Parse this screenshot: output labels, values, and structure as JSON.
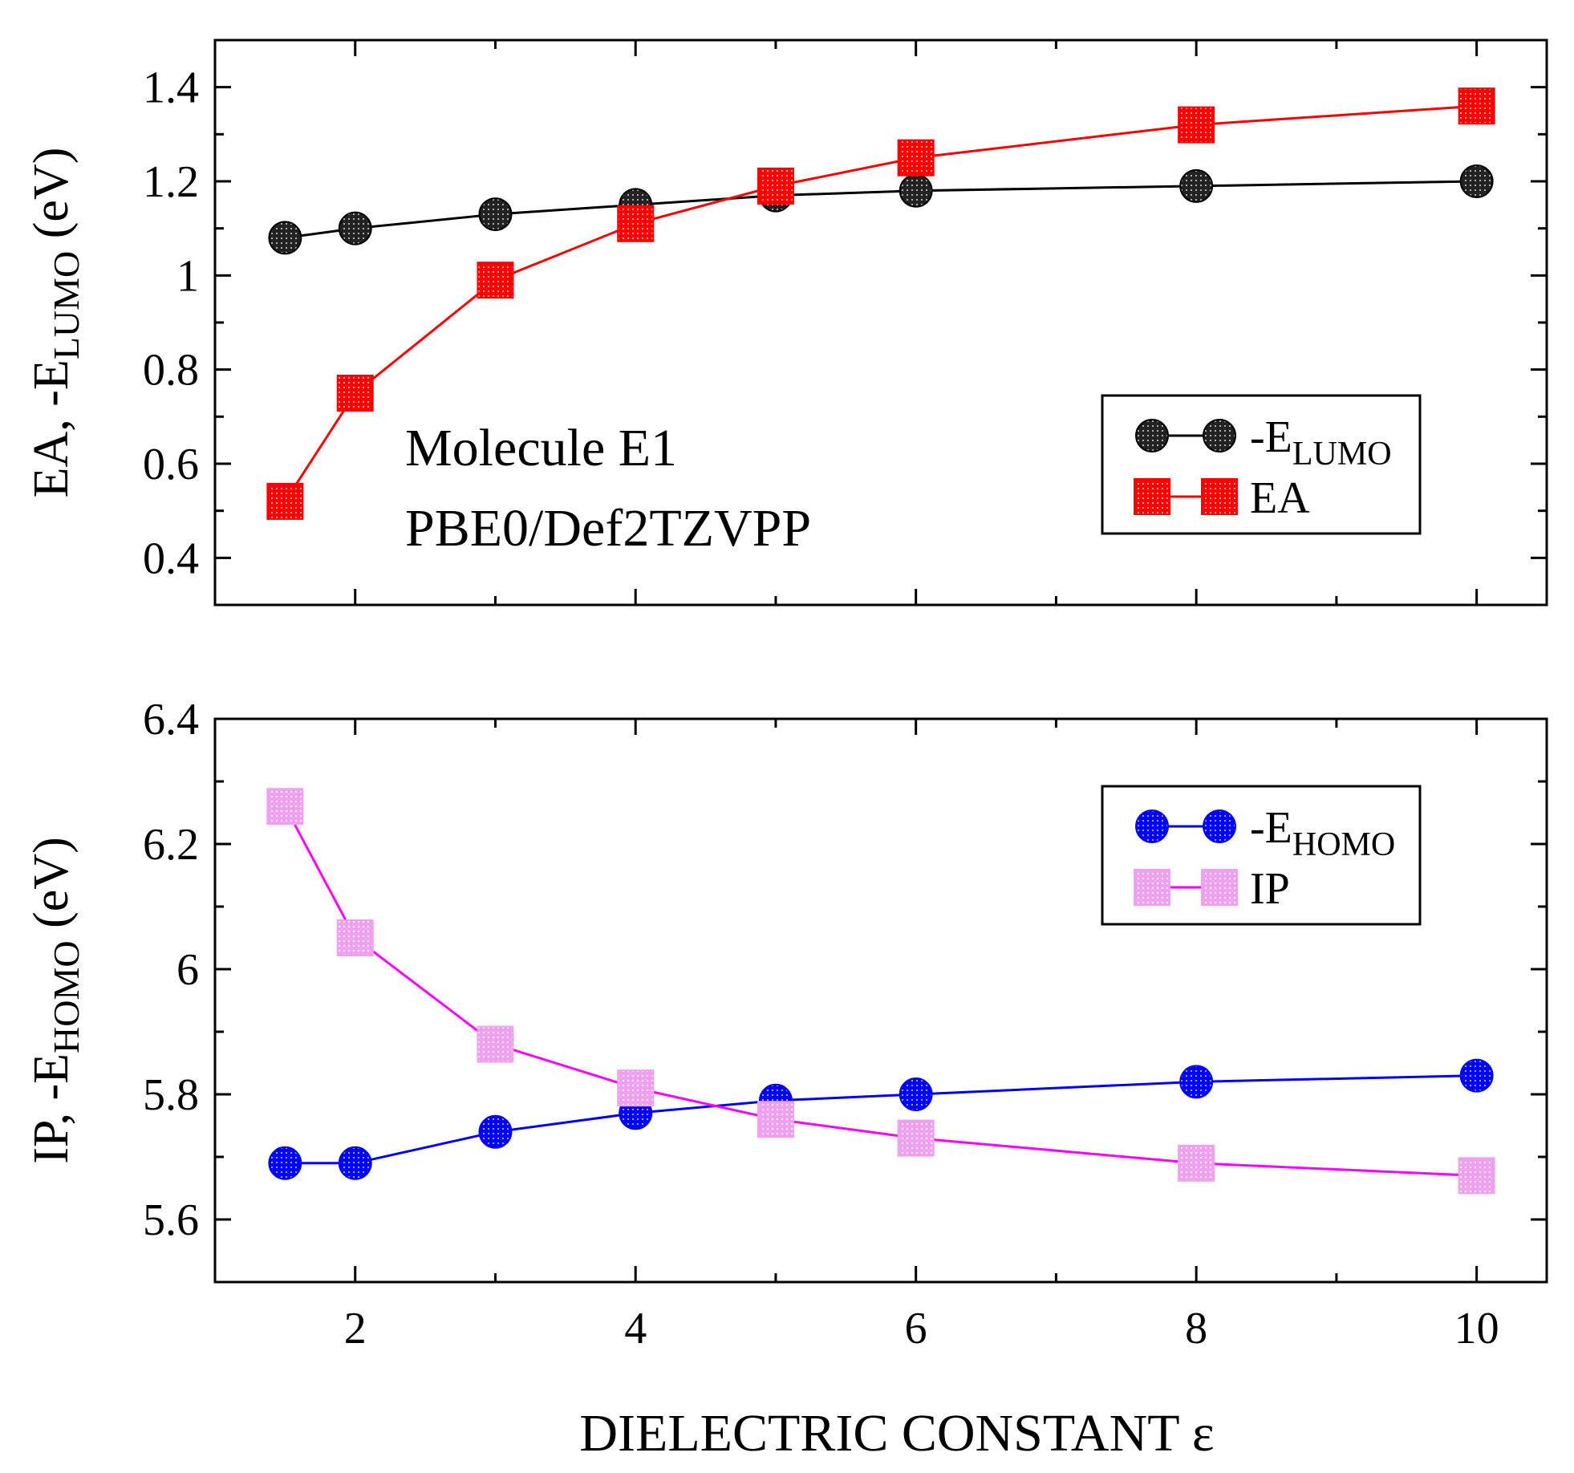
{
  "chart_data": [
    {
      "type": "line",
      "panel": "top",
      "title": "",
      "ylabel_parts": {
        "main": "EA, -E",
        "sub": "LUMO",
        "suffix": "  (eV)"
      },
      "xlabel": "",
      "xlim": [
        1,
        10.5
      ],
      "ylim": [
        0.3,
        1.5
      ],
      "x_ticks": [
        2,
        4,
        6,
        8,
        10
      ],
      "y_ticks": [
        0.4,
        0.6,
        0.8,
        1,
        1.2,
        1.4
      ],
      "y_tick_labels": [
        "0.4",
        "0.6",
        "0.8",
        "1",
        "1.2",
        "1.4"
      ],
      "annotations": [
        "Molecule E1",
        "PBE0/Def2TZVPP"
      ],
      "legend_position": "right",
      "series": [
        {
          "name_main": "-E",
          "name_sub": "LUMO",
          "color": "#000000",
          "marker": "circle",
          "marker_fill": "#222222",
          "x": [
            1.5,
            2,
            3,
            4,
            5,
            6,
            8,
            10
          ],
          "y": [
            1.08,
            1.1,
            1.13,
            1.15,
            1.17,
            1.18,
            1.19,
            1.2
          ]
        },
        {
          "name_main": "EA",
          "name_sub": "",
          "color": "#ff0000",
          "marker": "square",
          "marker_fill": "#ff0000",
          "x": [
            1.5,
            2,
            3,
            4,
            5,
            6,
            8,
            10
          ],
          "y": [
            0.52,
            0.75,
            0.99,
            1.11,
            1.19,
            1.25,
            1.32,
            1.36
          ]
        }
      ]
    },
    {
      "type": "line",
      "panel": "bottom",
      "title": "",
      "ylabel_parts": {
        "main": "IP, -E",
        "sub": "HOMO",
        "suffix": "  (eV)"
      },
      "xlabel": "DIELECTRIC CONSTANT ε",
      "xlim": [
        1,
        10.5
      ],
      "ylim": [
        5.5,
        6.4
      ],
      "x_ticks": [
        2,
        4,
        6,
        8,
        10
      ],
      "x_tick_labels": [
        "2",
        "4",
        "6",
        "8",
        "10"
      ],
      "y_ticks": [
        5.6,
        5.8,
        6,
        6.2,
        6.4
      ],
      "y_tick_labels": [
        "5.6",
        "5.8",
        "6",
        "6.2",
        "6.4"
      ],
      "legend_position": "top-right",
      "series": [
        {
          "name_main": "-E",
          "name_sub": "HOMO",
          "color": "#0000ff",
          "marker": "circle",
          "marker_fill": "#0000ff",
          "x": [
            1.5,
            2,
            3,
            4,
            5,
            6,
            8,
            10
          ],
          "y": [
            5.69,
            5.69,
            5.74,
            5.77,
            5.79,
            5.8,
            5.82,
            5.83
          ]
        },
        {
          "name_main": "IP",
          "name_sub": "",
          "color": "#ff00ff",
          "marker": "square",
          "marker_fill": "#f0a0f0",
          "x": [
            1.5,
            2,
            3,
            4,
            5,
            6,
            8,
            10
          ],
          "y": [
            6.26,
            6.05,
            5.88,
            5.81,
            5.76,
            5.73,
            5.69,
            5.67
          ]
        }
      ]
    }
  ]
}
